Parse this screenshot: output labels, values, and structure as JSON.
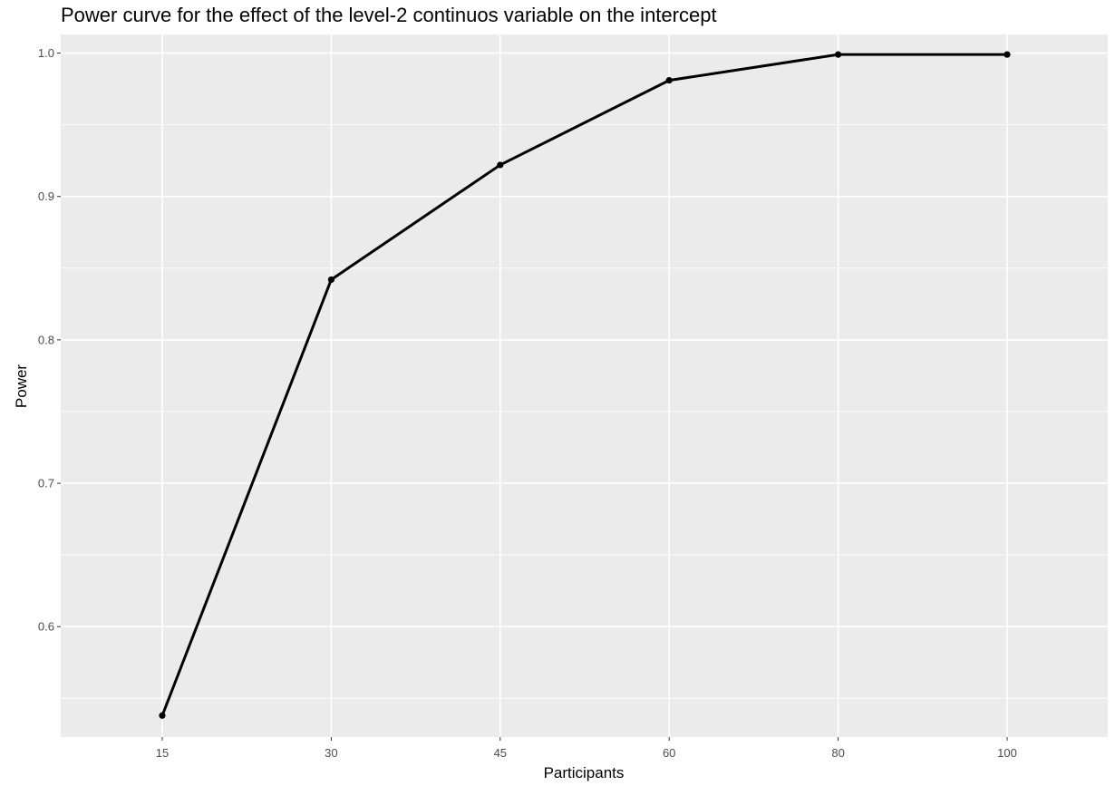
{
  "chart_data": {
    "type": "line",
    "title": "Power curve for the effect of the level-2 continuos variable on the intercept",
    "xlabel": "Participants",
    "ylabel": "Power",
    "x_scale": "discrete",
    "categories": [
      "15",
      "30",
      "45",
      "60",
      "80",
      "100"
    ],
    "series": [
      {
        "values": [
          0.538,
          0.842,
          0.922,
          0.981,
          0.999,
          0.999
        ]
      }
    ],
    "y_ticks": [
      "0.6",
      "0.7",
      "0.8",
      "0.9",
      "1.0"
    ],
    "ylim": [
      0.523,
      1.013
    ],
    "grid": true,
    "legend": "none",
    "colors": {
      "panel": "#ebebeb",
      "grid": "#ffffff",
      "line": "#000000",
      "tick_label": "#4d4d4d"
    }
  }
}
